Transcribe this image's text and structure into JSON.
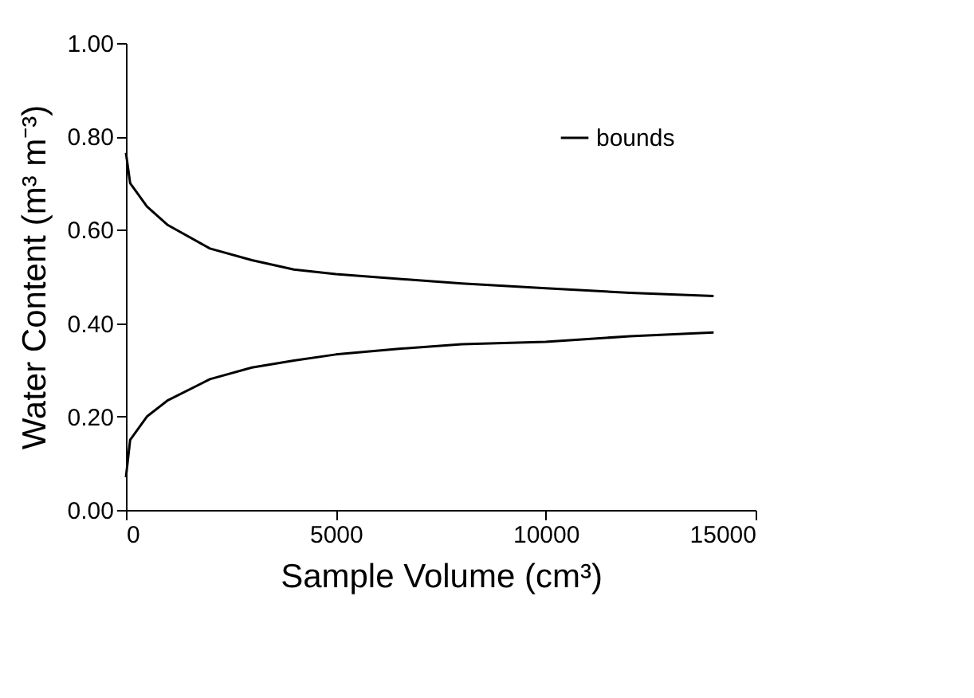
{
  "chart_data": {
    "type": "line",
    "xlabel": "Sample Volume (cm³)",
    "ylabel": "Water Content (m³ m⁻³)",
    "x": [
      0,
      100,
      500,
      1000,
      2000,
      3000,
      4000,
      5000,
      6500,
      8000,
      10000,
      12000,
      14000
    ],
    "series": [
      {
        "name": "bounds",
        "color": "#000000",
        "values": [
          0.765,
          0.7,
          0.65,
          0.61,
          0.56,
          0.535,
          0.515,
          0.505,
          0.495,
          0.485,
          0.475,
          0.465,
          0.458
        ]
      },
      {
        "color": "#000000",
        "values": [
          0.07,
          0.15,
          0.2,
          0.235,
          0.28,
          0.305,
          0.32,
          0.333,
          0.345,
          0.355,
          0.36,
          0.372,
          0.38
        ]
      }
    ],
    "xlim": [
      0,
      15000
    ],
    "xticks": [
      0,
      5000,
      10000,
      15000
    ],
    "ylim": [
      0,
      1
    ],
    "yticks": [
      {
        "value": 0,
        "label": "0.00"
      },
      {
        "value": 0.2,
        "label": "0.20"
      },
      {
        "value": 0.4,
        "label": "0.40"
      },
      {
        "value": 0.6,
        "label": "0.60"
      },
      {
        "value": 0.8,
        "label": "0.80"
      },
      {
        "value": 1,
        "label": "1.00"
      }
    ],
    "grid": false,
    "legend": "top right",
    "marker": "none",
    "line_style": "solid"
  }
}
